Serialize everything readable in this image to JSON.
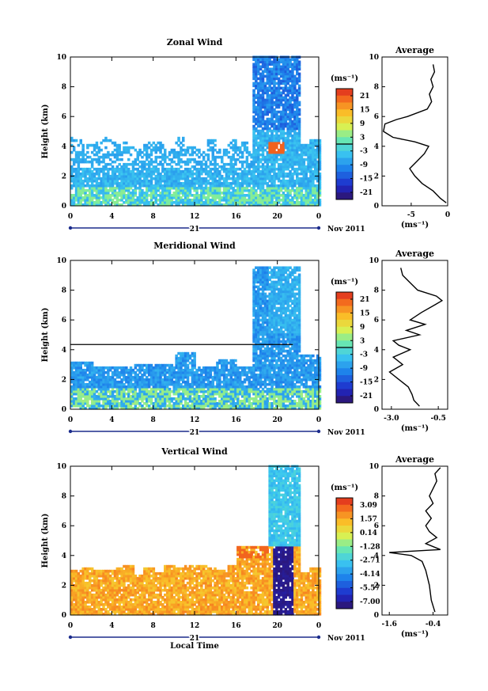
{
  "chart_data": [
    {
      "type": "heatmap",
      "title": "Zonal Wind",
      "ylabel": "Height (km)",
      "xlabel": "",
      "x_tick_labels": [
        "0",
        "4",
        "8",
        "12",
        "16",
        "20",
        "0"
      ],
      "y_tick_labels": [
        "0",
        "2",
        "4",
        "6",
        "8",
        "10"
      ],
      "xlim": [
        0,
        24
      ],
      "ylim": [
        0,
        10
      ],
      "date_day": "21",
      "date_month": "Nov 2011",
      "colorbar": {
        "unit": "(ms⁻¹)",
        "tick_labels": [
          "21",
          "15",
          "9",
          "3",
          "-3",
          "-9",
          "-15",
          "-21"
        ],
        "range": [
          -24,
          24
        ],
        "zero_line": true
      },
      "average_profile": {
        "title": "Average",
        "xlabel": "(ms⁻¹)",
        "x_tick_labels": [
          "-5",
          "0"
        ],
        "xlim": [
          -9,
          0
        ],
        "y_tick_labels": [
          "0",
          "2",
          "4",
          "6",
          "8",
          "10"
        ],
        "height_km": [
          0.2,
          0.5,
          1.0,
          1.5,
          2.0,
          2.5,
          3.0,
          3.5,
          4.0,
          4.3,
          4.6,
          5.0,
          5.5,
          5.8,
          6.0,
          6.5,
          7.0,
          7.5,
          8.0,
          8.5,
          9.0,
          9.5
        ],
        "wind_ms": [
          -0.2,
          -1.0,
          -2.0,
          -3.5,
          -4.5,
          -5.2,
          -4.2,
          -3.2,
          -2.6,
          -4.5,
          -7.5,
          -8.8,
          -8.6,
          -7.0,
          -5.5,
          -2.8,
          -2.2,
          -2.5,
          -2.0,
          -2.3,
          -1.8,
          -2.0
        ]
      }
    },
    {
      "type": "heatmap",
      "title": "Meridional Wind",
      "ylabel": "Height (km)",
      "xlabel": "",
      "x_tick_labels": [
        "0",
        "4",
        "8",
        "12",
        "16",
        "20",
        "0"
      ],
      "y_tick_labels": [
        "0",
        "2",
        "4",
        "6",
        "8",
        "10"
      ],
      "xlim": [
        0,
        24
      ],
      "ylim": [
        0,
        10
      ],
      "date_day": "21",
      "date_month": "Nov 2011",
      "colorbar": {
        "unit": "(ms⁻¹)",
        "tick_labels": [
          "21",
          "15",
          "9",
          "3",
          "-3",
          "-9",
          "-15",
          "-21"
        ],
        "range": [
          -24,
          24
        ],
        "zero_line": true
      },
      "average_profile": {
        "title": "Average",
        "xlabel": "(ms⁻¹)",
        "x_tick_labels": [
          "-3.0",
          "-0.5"
        ],
        "xlim": [
          -3.5,
          0
        ],
        "y_tick_labels": [
          "0",
          "2",
          "4",
          "6",
          "8",
          "10"
        ],
        "height_km": [
          0.2,
          0.6,
          1.0,
          1.5,
          2.0,
          2.5,
          3.0,
          3.5,
          4.0,
          4.3,
          4.6,
          5.0,
          5.3,
          5.7,
          6.0,
          6.5,
          7.0,
          7.3,
          7.6,
          8.0,
          8.5,
          9.0,
          9.5
        ],
        "wind_ms": [
          -1.5,
          -1.8,
          -1.9,
          -2.1,
          -2.6,
          -3.1,
          -2.4,
          -2.9,
          -2.0,
          -2.6,
          -2.9,
          -1.5,
          -2.2,
          -1.2,
          -2.0,
          -1.4,
          -0.7,
          -0.3,
          -0.6,
          -1.6,
          -2.0,
          -2.4,
          -2.5
        ]
      }
    },
    {
      "type": "heatmap",
      "title": "Vertical Wind",
      "ylabel": "Height (km)",
      "xlabel": "Local Time",
      "x_tick_labels": [
        "0",
        "4",
        "8",
        "12",
        "16",
        "20",
        "0"
      ],
      "y_tick_labels": [
        "0",
        "2",
        "4",
        "6",
        "8",
        "10"
      ],
      "xlim": [
        0,
        24
      ],
      "ylim": [
        0,
        10
      ],
      "date_day": "21",
      "date_month": "Nov 2011",
      "colorbar": {
        "unit": "(ms⁻¹)",
        "tick_labels": [
          "3.09",
          "1.57",
          "0.14",
          "-1.28",
          "-2.71",
          "-4.14",
          "-5.57",
          "-7.00"
        ],
        "range": [
          -7.7,
          3.8
        ],
        "zero_line": false
      },
      "average_profile": {
        "title": "Average",
        "xlabel": "(ms⁻¹)",
        "x_tick_labels": [
          "-1.6",
          "-0.4"
        ],
        "xlim": [
          -1.8,
          0
        ],
        "y_tick_labels": [
          "0",
          "2",
          "4",
          "6",
          "8",
          "10"
        ],
        "height_km": [
          0.2,
          1.0,
          2.0,
          3.0,
          3.6,
          4.0,
          4.2,
          4.4,
          4.8,
          5.2,
          5.6,
          6.0,
          6.5,
          7.0,
          7.5,
          8.0,
          8.5,
          9.0,
          9.5,
          9.9
        ],
        "wind_ms": [
          -0.35,
          -0.45,
          -0.5,
          -0.6,
          -0.7,
          -1.0,
          -1.6,
          -0.2,
          -0.6,
          -0.3,
          -0.5,
          -0.6,
          -0.45,
          -0.6,
          -0.4,
          -0.5,
          -0.4,
          -0.3,
          -0.35,
          -0.2
        ]
      }
    }
  ]
}
